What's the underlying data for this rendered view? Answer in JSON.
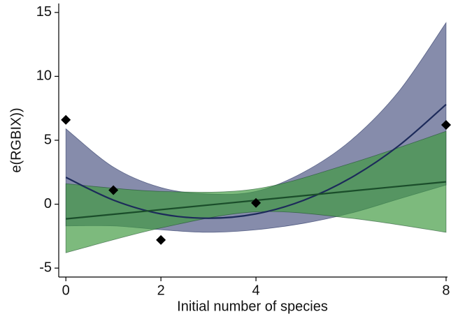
{
  "chart_data": {
    "type": "scatter",
    "xlabel": "Initial number of species",
    "ylabel": "e(RGBIX))",
    "xlim": [
      -0.15,
      8.03
    ],
    "ylim": [
      -5.7,
      15.7
    ],
    "xticks": [
      0,
      2,
      4,
      8
    ],
    "yticks": [
      -5,
      0,
      5,
      10,
      15
    ],
    "points": {
      "color": "#000000",
      "x": [
        0,
        1,
        2,
        4,
        8
      ],
      "values": [
        6.6,
        1.1,
        -2.8,
        0.1,
        6.2
      ]
    },
    "fits": [
      {
        "color": "#1c2a5a",
        "band_color": "#3c4678",
        "x": [
          0,
          1,
          2,
          3,
          4,
          5,
          6,
          7,
          8
        ],
        "values": [
          2.1,
          0.32,
          -0.76,
          -1.1,
          -0.76,
          0.3,
          2.07,
          4.56,
          7.8
        ],
        "upper": [
          5.9,
          2.9,
          1.3,
          0.8,
          1.0,
          2.5,
          5.0,
          8.8,
          14.2
        ],
        "lower": [
          -1.7,
          -1.7,
          -2.0,
          -2.2,
          -2.0,
          -1.5,
          -0.7,
          0.4,
          1.5
        ]
      },
      {
        "color": "#1a4d2a",
        "band_color": "#3f9a3f",
        "x": [
          0,
          2,
          4,
          6,
          8
        ],
        "values": [
          -1.15,
          -0.43,
          0.3,
          1.03,
          1.75
        ],
        "upper": [
          1.6,
          1.0,
          1.2,
          3.2,
          5.7
        ],
        "lower": [
          -3.8,
          -1.86,
          -0.6,
          -1.1,
          -2.2
        ]
      }
    ]
  }
}
